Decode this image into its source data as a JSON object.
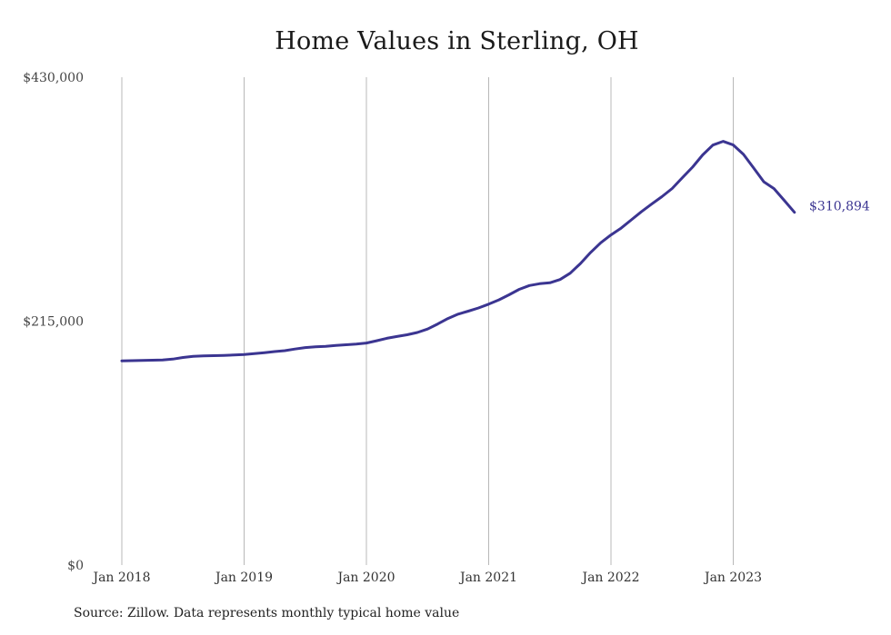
{
  "chart_data": {
    "type": "line",
    "title": "Home Values in Sterling, OH",
    "xlabel": "",
    "ylabel": "",
    "ylim": [
      0,
      430000
    ],
    "y_ticks": [
      0,
      215000,
      430000
    ],
    "y_tick_labels": [
      "$0",
      "$215,000",
      "$430,000"
    ],
    "x_ticks": [
      "2018-01",
      "2019-01",
      "2020-01",
      "2021-01",
      "2022-01",
      "2023-01"
    ],
    "x_tick_labels": [
      "Jan 2018",
      "Jan 2019",
      "Jan 2020",
      "Jan 2021",
      "Jan 2022",
      "Jan 2023"
    ],
    "grid": "vertical",
    "line_color": "#3b3591",
    "end_label": "$310,894",
    "series": [
      {
        "x": [
          "2018-01",
          "2018-02",
          "2018-03",
          "2018-04",
          "2018-05",
          "2018-06",
          "2018-07",
          "2018-08",
          "2018-09",
          "2018-10",
          "2018-11",
          "2018-12",
          "2019-01",
          "2019-02",
          "2019-03",
          "2019-04",
          "2019-05",
          "2019-06",
          "2019-07",
          "2019-08",
          "2019-09",
          "2019-10",
          "2019-11",
          "2019-12",
          "2020-01",
          "2020-02",
          "2020-03",
          "2020-04",
          "2020-05",
          "2020-06",
          "2020-07",
          "2020-08",
          "2020-09",
          "2020-10",
          "2020-11",
          "2020-12",
          "2021-01",
          "2021-02",
          "2021-03",
          "2021-04",
          "2021-05",
          "2021-06",
          "2021-07",
          "2021-08",
          "2021-09",
          "2021-10",
          "2021-11",
          "2021-12",
          "2022-01",
          "2022-02",
          "2022-03",
          "2022-04",
          "2022-05",
          "2022-06",
          "2022-07",
          "2022-08",
          "2022-09",
          "2022-10",
          "2022-11",
          "2022-12",
          "2023-01",
          "2023-02",
          "2023-03",
          "2023-04",
          "2023-05",
          "2023-06",
          "2023-07"
        ],
        "values": [
          180000,
          180200,
          180400,
          180600,
          180800,
          181500,
          183000,
          184000,
          184400,
          184600,
          184800,
          185100,
          185600,
          186300,
          187200,
          188200,
          189000,
          190400,
          191700,
          192300,
          192800,
          193600,
          194200,
          194800,
          195700,
          197700,
          199900,
          201500,
          203000,
          205000,
          208000,
          212500,
          217300,
          221200,
          223800,
          226600,
          230000,
          233700,
          238200,
          243000,
          246400,
          248000,
          248800,
          251700,
          257300,
          265800,
          275500,
          284100,
          291000,
          297000,
          304300,
          311600,
          318200,
          324700,
          331900,
          341400,
          350700,
          361500,
          370200,
          373500,
          370300,
          362000,
          350000,
          337800,
          331800,
          321500,
          310894
        ]
      }
    ]
  },
  "source": "Source: Zillow. Data represents monthly typical home value"
}
